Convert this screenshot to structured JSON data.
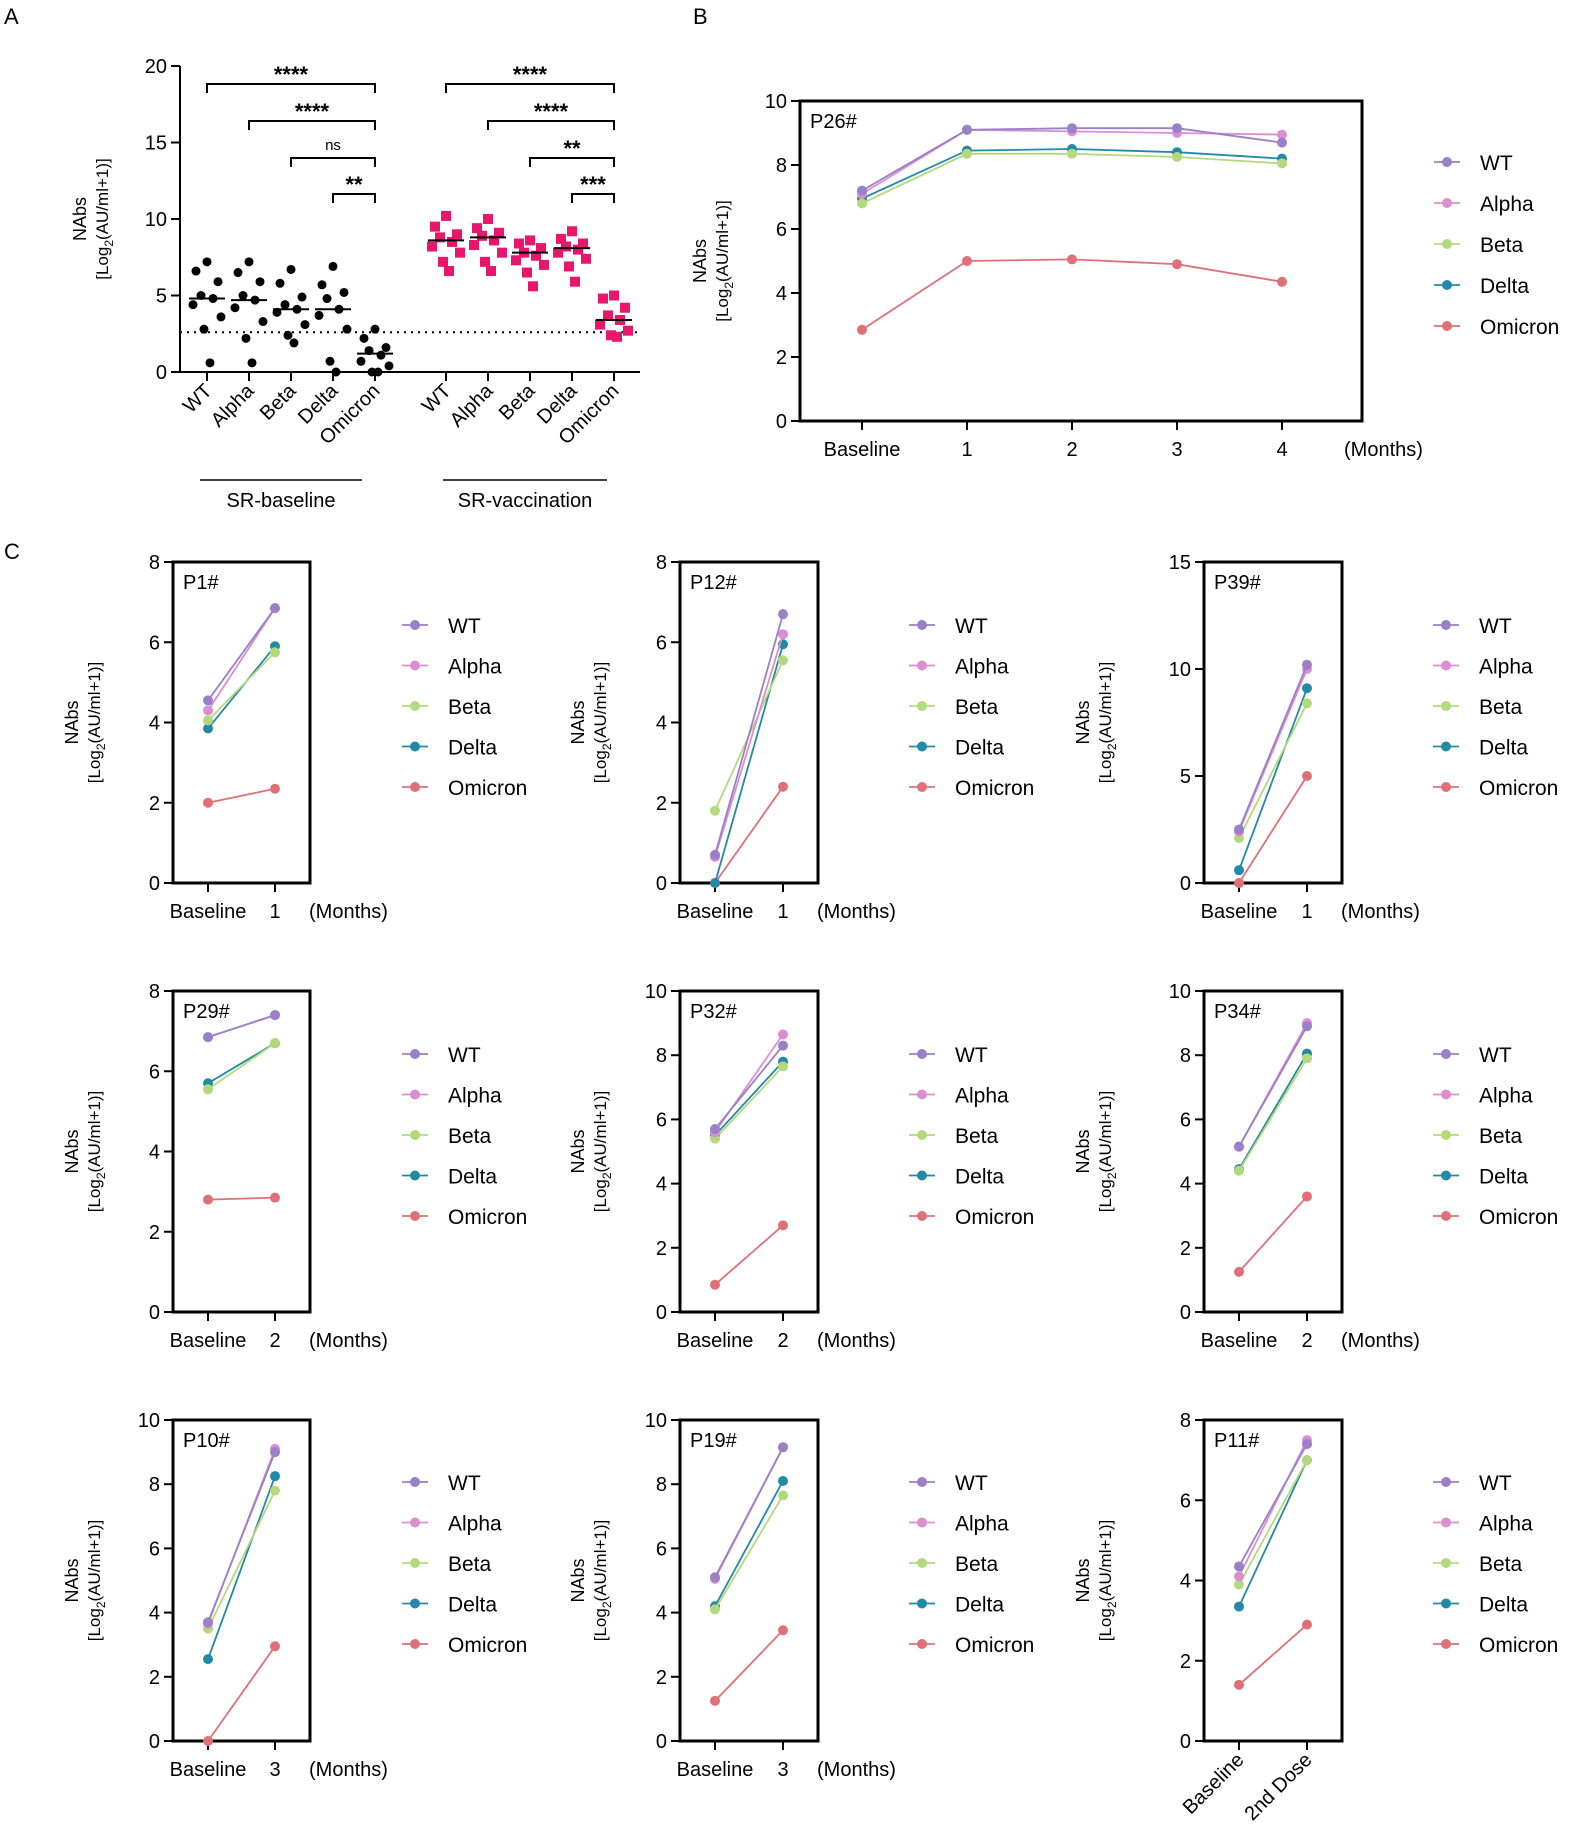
{
  "colors": {
    "WT": "#9b7fc7",
    "Alpha": "#dc8fd0",
    "Beta": "#b4d97c",
    "Delta": "#2289a6",
    "Omicron": "#e07078",
    "baseline_dots": "#000000",
    "vaccination_dots": "#e8176b"
  },
  "panel_labels": {
    "a": "A",
    "b": "B",
    "c": "C"
  },
  "common": {
    "ylabel_main": "NAbs",
    "ylabel_sub_pre": "[Log",
    "ylabel_sub_post": "(AU/ml+1)]",
    "ylabel_sub_index": "2",
    "months_label": "(Months)"
  },
  "chart_data": [
    {
      "id": "A",
      "type": "scatter",
      "title": "",
      "ylabel": "NAbs [Log2(AU/ml+1)]",
      "ylim": [
        0,
        20
      ],
      "yticks": [
        0,
        5,
        10,
        15,
        20
      ],
      "categories": [
        "WT",
        "Alpha",
        "Beta",
        "Delta",
        "Omicron",
        "WT",
        "Alpha",
        "Beta",
        "Delta",
        "Omicron"
      ],
      "group_labels": [
        "SR-baseline",
        "SR-vaccination"
      ],
      "threshold": 2.6,
      "medians": [
        4.8,
        4.7,
        4.1,
        4.1,
        1.2,
        8.6,
        8.8,
        7.8,
        8.1,
        3.4
      ],
      "points": [
        [
          7.2,
          6.6,
          5.9,
          5.0,
          4.8,
          4.4,
          3.6,
          2.8,
          0.6
        ],
        [
          7.2,
          6.5,
          5.9,
          5.0,
          4.7,
          4.2,
          3.3,
          2.2,
          0.6
        ],
        [
          6.7,
          5.8,
          4.9,
          4.4,
          4.1,
          3.9,
          3.1,
          2.4,
          1.9
        ],
        [
          6.9,
          5.7,
          5.2,
          4.8,
          4.1,
          3.7,
          2.8,
          0.7,
          0.0
        ],
        [
          2.8,
          2.2,
          1.6,
          1.4,
          1.1,
          0.7,
          0.4,
          0.0,
          0.0
        ],
        [
          10.2,
          9.5,
          9.0,
          8.8,
          8.5,
          8.2,
          7.8,
          7.2,
          6.6
        ],
        [
          10.0,
          9.4,
          9.1,
          8.9,
          8.6,
          8.3,
          7.8,
          7.2,
          6.6
        ],
        [
          8.6,
          8.4,
          8.1,
          7.8,
          7.6,
          7.3,
          7.0,
          6.5,
          5.6
        ],
        [
          9.2,
          8.7,
          8.4,
          8.2,
          8.0,
          7.8,
          7.4,
          6.9,
          5.9
        ],
        [
          5.0,
          4.8,
          4.2,
          3.7,
          3.4,
          3.1,
          2.7,
          2.4,
          2.3
        ]
      ],
      "significance": [
        {
          "group": 0,
          "from": 0,
          "to": 4,
          "label": "****"
        },
        {
          "group": 0,
          "from": 1,
          "to": 4,
          "label": "****"
        },
        {
          "group": 0,
          "from": 2,
          "to": 4,
          "label": "ns"
        },
        {
          "group": 0,
          "from": 3,
          "to": 4,
          "label": "**"
        },
        {
          "group": 1,
          "from": 0,
          "to": 4,
          "label": "****"
        },
        {
          "group": 1,
          "from": 1,
          "to": 4,
          "label": "****"
        },
        {
          "group": 1,
          "from": 2,
          "to": 4,
          "label": "**"
        },
        {
          "group": 1,
          "from": 3,
          "to": 4,
          "label": "***"
        }
      ]
    },
    {
      "id": "B",
      "type": "line",
      "title": "P26#",
      "ylim": [
        0,
        10
      ],
      "yticks": [
        0,
        2,
        4,
        6,
        8,
        10
      ],
      "categories": [
        "Baseline",
        "1",
        "2",
        "3",
        "4"
      ],
      "series": [
        {
          "name": "WT",
          "values": [
            7.2,
            9.1,
            9.15,
            9.15,
            8.7
          ]
        },
        {
          "name": "Alpha",
          "values": [
            7.1,
            9.1,
            9.05,
            9.0,
            8.95
          ]
        },
        {
          "name": "Beta",
          "values": [
            6.8,
            8.35,
            8.35,
            8.25,
            8.05
          ]
        },
        {
          "name": "Delta",
          "values": [
            6.95,
            8.45,
            8.5,
            8.4,
            8.2
          ]
        },
        {
          "name": "Omicron",
          "values": [
            2.85,
            5.0,
            5.05,
            4.9,
            4.35
          ]
        }
      ]
    },
    {
      "id": "P1",
      "type": "line",
      "title": "P1#",
      "ylim": [
        0,
        8
      ],
      "yticks": [
        0,
        2,
        4,
        6,
        8
      ],
      "categories": [
        "Baseline",
        "1"
      ],
      "series": [
        {
          "name": "WT",
          "values": [
            4.55,
            6.85
          ]
        },
        {
          "name": "Alpha",
          "values": [
            4.3,
            6.85
          ]
        },
        {
          "name": "Beta",
          "values": [
            4.05,
            5.75
          ]
        },
        {
          "name": "Delta",
          "values": [
            3.85,
            5.9
          ]
        },
        {
          "name": "Omicron",
          "values": [
            2.0,
            2.35
          ]
        }
      ]
    },
    {
      "id": "P12",
      "type": "line",
      "title": "P12#",
      "ylim": [
        0,
        8
      ],
      "yticks": [
        0,
        2,
        4,
        6,
        8
      ],
      "categories": [
        "Baseline",
        "1"
      ],
      "series": [
        {
          "name": "WT",
          "values": [
            0.7,
            6.7
          ]
        },
        {
          "name": "Alpha",
          "values": [
            0.65,
            6.2
          ]
        },
        {
          "name": "Beta",
          "values": [
            1.8,
            5.55
          ]
        },
        {
          "name": "Delta",
          "values": [
            0.0,
            5.95
          ]
        },
        {
          "name": "Omicron",
          "values": [
            0.0,
            2.4
          ]
        }
      ]
    },
    {
      "id": "P39",
      "type": "line",
      "title": "P39#",
      "ylim": [
        0,
        15
      ],
      "yticks": [
        0,
        5,
        10,
        15
      ],
      "categories": [
        "Baseline",
        "1"
      ],
      "series": [
        {
          "name": "WT",
          "values": [
            2.5,
            10.2
          ]
        },
        {
          "name": "Alpha",
          "values": [
            2.4,
            10.0
          ]
        },
        {
          "name": "Beta",
          "values": [
            2.1,
            8.4
          ]
        },
        {
          "name": "Delta",
          "values": [
            0.6,
            9.1
          ]
        },
        {
          "name": "Omicron",
          "values": [
            0.0,
            5.0
          ]
        }
      ]
    },
    {
      "id": "P29",
      "type": "line",
      "title": "P29#",
      "ylim": [
        0,
        8
      ],
      "yticks": [
        0,
        2,
        4,
        6,
        8
      ],
      "categories": [
        "Baseline",
        "2"
      ],
      "series": [
        {
          "name": "WT",
          "values": [
            6.85,
            7.4
          ]
        },
        {
          "name": "Alpha",
          "values": [
            6.85,
            7.4
          ]
        },
        {
          "name": "Beta",
          "values": [
            5.55,
            6.7
          ]
        },
        {
          "name": "Delta",
          "values": [
            5.7,
            6.7
          ]
        },
        {
          "name": "Omicron",
          "values": [
            2.8,
            2.85
          ]
        }
      ]
    },
    {
      "id": "P32",
      "type": "line",
      "title": "P32#",
      "ylim": [
        0,
        10
      ],
      "yticks": [
        0,
        2,
        4,
        6,
        8,
        10
      ],
      "categories": [
        "Baseline",
        "2"
      ],
      "series": [
        {
          "name": "WT",
          "values": [
            5.7,
            8.3
          ]
        },
        {
          "name": "Alpha",
          "values": [
            5.6,
            8.65
          ]
        },
        {
          "name": "Beta",
          "values": [
            5.4,
            7.65
          ]
        },
        {
          "name": "Delta",
          "values": [
            5.5,
            7.8
          ]
        },
        {
          "name": "Omicron",
          "values": [
            0.85,
            2.7
          ]
        }
      ]
    },
    {
      "id": "P34",
      "type": "line",
      "title": "P34#",
      "ylim": [
        0,
        10
      ],
      "yticks": [
        0,
        2,
        4,
        6,
        8,
        10
      ],
      "categories": [
        "Baseline",
        "2"
      ],
      "series": [
        {
          "name": "WT",
          "values": [
            5.15,
            8.9
          ]
        },
        {
          "name": "Alpha",
          "values": [
            5.15,
            9.0
          ]
        },
        {
          "name": "Beta",
          "values": [
            4.4,
            7.9
          ]
        },
        {
          "name": "Delta",
          "values": [
            4.45,
            8.05
          ]
        },
        {
          "name": "Omicron",
          "values": [
            1.25,
            3.6
          ]
        }
      ]
    },
    {
      "id": "P10",
      "type": "line",
      "title": "P10#",
      "ylim": [
        0,
        10
      ],
      "yticks": [
        0,
        2,
        4,
        6,
        8,
        10
      ],
      "categories": [
        "Baseline",
        "3"
      ],
      "series": [
        {
          "name": "WT",
          "values": [
            3.7,
            9.0
          ]
        },
        {
          "name": "Alpha",
          "values": [
            3.65,
            9.1
          ]
        },
        {
          "name": "Beta",
          "values": [
            3.5,
            7.8
          ]
        },
        {
          "name": "Delta",
          "values": [
            2.55,
            8.25
          ]
        },
        {
          "name": "Omicron",
          "values": [
            0.0,
            2.95
          ]
        }
      ]
    },
    {
      "id": "P19",
      "type": "line",
      "title": "P19#",
      "ylim": [
        0,
        10
      ],
      "yticks": [
        0,
        2,
        4,
        6,
        8,
        10
      ],
      "categories": [
        "Baseline",
        "3"
      ],
      "series": [
        {
          "name": "WT",
          "values": [
            5.1,
            9.15
          ]
        },
        {
          "name": "Alpha",
          "values": [
            5.05,
            9.15
          ]
        },
        {
          "name": "Beta",
          "values": [
            4.1,
            7.65
          ]
        },
        {
          "name": "Delta",
          "values": [
            4.2,
            8.1
          ]
        },
        {
          "name": "Omicron",
          "values": [
            1.25,
            3.45
          ]
        }
      ]
    },
    {
      "id": "P11",
      "type": "line",
      "title": "P11#",
      "ylim": [
        0,
        8
      ],
      "yticks": [
        0,
        2,
        4,
        6,
        8
      ],
      "categories": [
        "Baseline",
        "2nd Dose"
      ],
      "rotated_xticks": true,
      "series": [
        {
          "name": "WT",
          "values": [
            4.35,
            7.4
          ]
        },
        {
          "name": "Alpha",
          "values": [
            4.1,
            7.5
          ]
        },
        {
          "name": "Beta",
          "values": [
            3.9,
            7.0
          ]
        },
        {
          "name": "Delta",
          "values": [
            3.35,
            7.0
          ]
        },
        {
          "name": "Omicron",
          "values": [
            1.4,
            2.9
          ]
        }
      ]
    }
  ]
}
